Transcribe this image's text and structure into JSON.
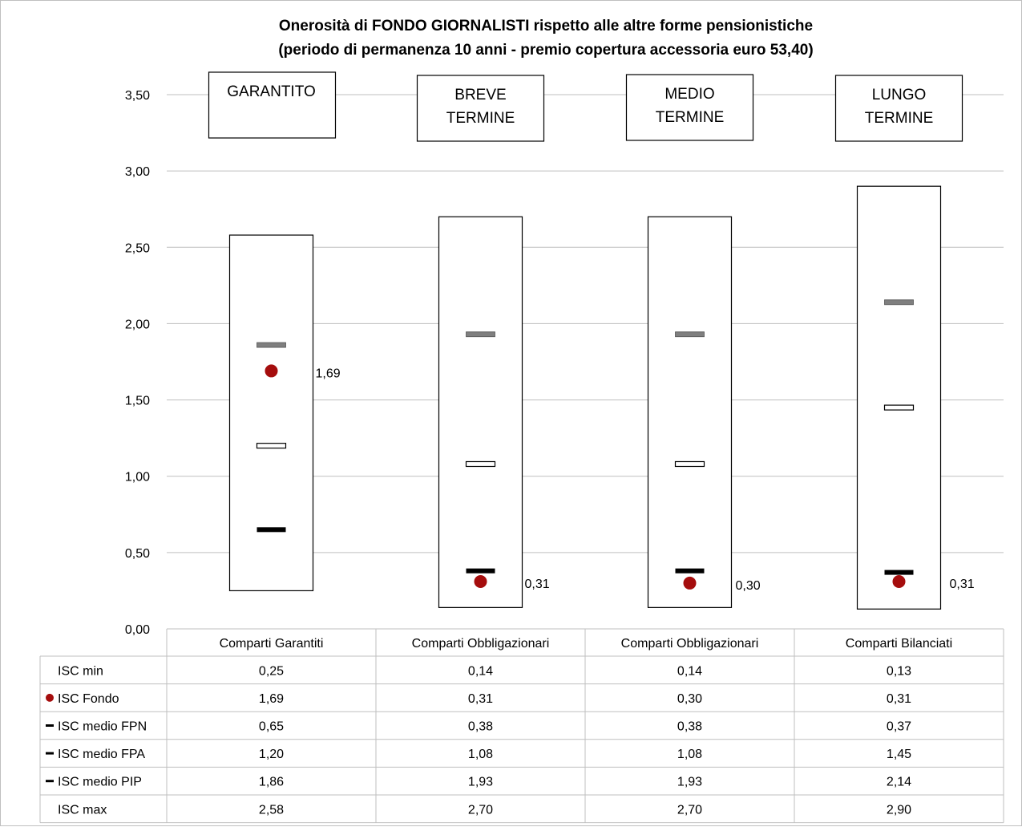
{
  "chart_data": {
    "type": "table",
    "title_lines": [
      "Onerosità di FONDO GIORNALISTI rispetto alle altre forme pensionistiche",
      "(periodo di permanenza 10 anni - premio copertura accessoria euro 53,40)"
    ],
    "y_ticks": [
      "0,00",
      "0,50",
      "1,00",
      "1,50",
      "2,00",
      "2,50",
      "3,00",
      "3,50"
    ],
    "ylim": [
      0,
      3.5
    ],
    "grid": true,
    "group_labels": [
      [
        "GARANTITO"
      ],
      [
        "BREVE",
        "TERMINE"
      ],
      [
        "MEDIO",
        "TERMINE"
      ],
      [
        "LUNGO",
        "TERMINE"
      ]
    ],
    "categories": [
      "Comparti Garantiti",
      "Comparti Obbligazionari",
      "Comparti Obbligazionari",
      "Comparti Bilanciati"
    ],
    "series": [
      {
        "name": "ISC min",
        "marker": "none",
        "values": [
          0.25,
          0.14,
          0.14,
          0.13
        ],
        "labels": [
          "0,25",
          "0,14",
          "0,14",
          "0,13"
        ]
      },
      {
        "name": "ISC Fondo",
        "marker": "dot",
        "values": [
          1.69,
          0.31,
          0.3,
          0.31
        ],
        "labels": [
          "1,69",
          "0,31",
          "0,30",
          "0,31"
        ]
      },
      {
        "name": "ISC medio FPN",
        "marker": "dash-black",
        "values": [
          0.65,
          0.38,
          0.38,
          0.37
        ],
        "labels": [
          "0,65",
          "0,38",
          "0,38",
          "0,37"
        ]
      },
      {
        "name": "ISC medio FPA",
        "marker": "dash-white",
        "values": [
          1.2,
          1.08,
          1.08,
          1.45
        ],
        "labels": [
          "1,20",
          "1,08",
          "1,08",
          "1,45"
        ]
      },
      {
        "name": "ISC medio PIP",
        "marker": "dash-grey",
        "values": [
          1.86,
          1.93,
          1.93,
          2.14
        ],
        "labels": [
          "1,86",
          "1,93",
          "1,93",
          "2,14"
        ]
      },
      {
        "name": "ISC max",
        "marker": "none",
        "values": [
          2.58,
          2.7,
          2.7,
          2.9
        ],
        "labels": [
          "2,58",
          "2,70",
          "2,70",
          "2,90"
        ]
      }
    ],
    "fondo_point_labels": [
      "1,69",
      "0,31",
      "0,30",
      "0,31"
    ],
    "colors": {
      "fondo_dot": "#a50d0d",
      "fpn_dash": "#000000",
      "fpa_dash": "#ffffff",
      "pip_dash": "#7f7f7f",
      "grid": "#bfbfbf",
      "box_border": "#000000"
    }
  }
}
